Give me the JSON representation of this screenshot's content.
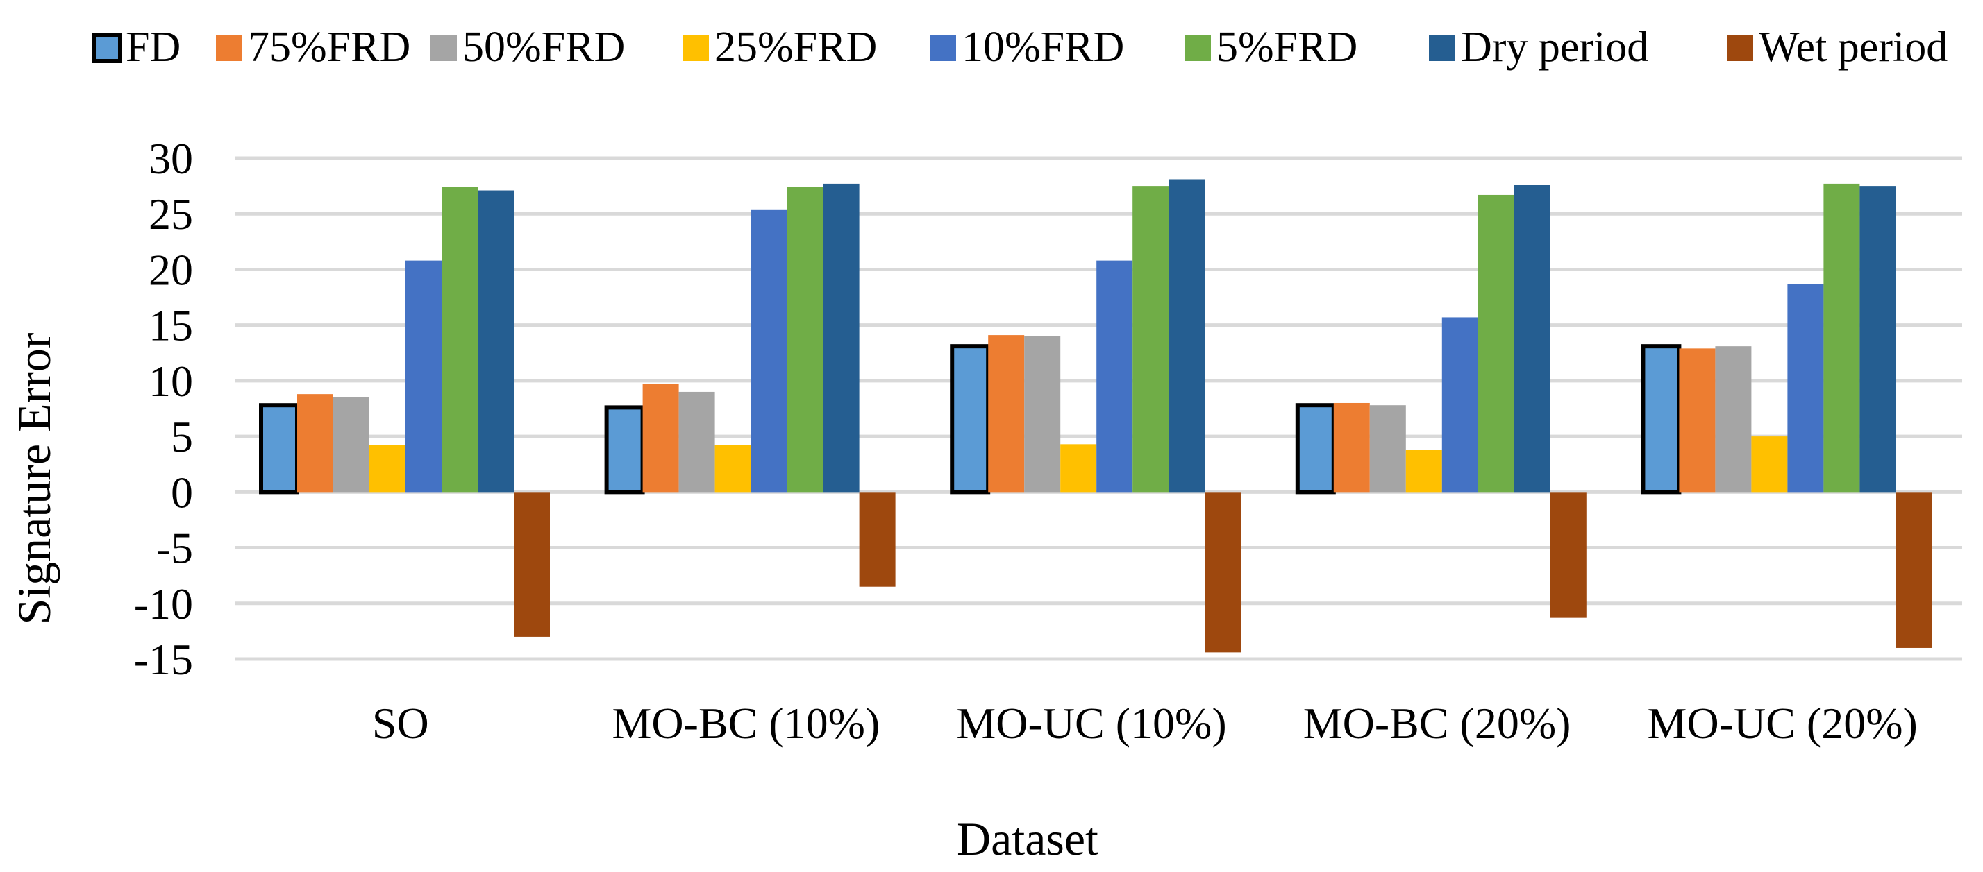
{
  "chart_data": {
    "type": "bar",
    "title": "",
    "xlabel": "Dataset",
    "ylabel": "Signature Error",
    "ylim": [
      -15,
      30
    ],
    "yticks": [
      30,
      25,
      20,
      15,
      10,
      5,
      0,
      -5,
      -10,
      -15
    ],
    "grid": true,
    "legend_position": "top",
    "categories": [
      "SO",
      "MO-BC (10%)",
      "MO-UC (10%)",
      "MO-BC (20%)",
      "MO-UC (20%)"
    ],
    "series": [
      {
        "name": "FD",
        "color": "#5B9BD5",
        "outline": "#000000",
        "values": [
          7.8,
          7.6,
          13.1,
          7.8,
          13.1
        ]
      },
      {
        "name": "75%FRD",
        "color": "#ED7D31",
        "values": [
          8.8,
          9.7,
          14.1,
          8.0,
          12.9
        ]
      },
      {
        "name": "50%FRD",
        "color": "#A5A5A5",
        "values": [
          8.5,
          9.0,
          14.0,
          7.8,
          13.1
        ]
      },
      {
        "name": "25%FRD",
        "color": "#FFC000",
        "values": [
          4.2,
          4.2,
          4.3,
          3.8,
          5.0
        ]
      },
      {
        "name": "10%FRD",
        "color": "#4472C4",
        "values": [
          20.8,
          25.4,
          20.8,
          15.7,
          18.7
        ]
      },
      {
        "name": "5%FRD",
        "color": "#70AD47",
        "values": [
          27.4,
          27.4,
          27.5,
          26.7,
          27.7
        ]
      },
      {
        "name": "Dry period",
        "color": "#255E91",
        "values": [
          27.1,
          27.7,
          28.1,
          27.6,
          27.5
        ]
      },
      {
        "name": "Wet period",
        "color": "#9E480E",
        "values": [
          -13.0,
          -8.5,
          -14.4,
          -11.3,
          -14.0
        ]
      }
    ]
  }
}
